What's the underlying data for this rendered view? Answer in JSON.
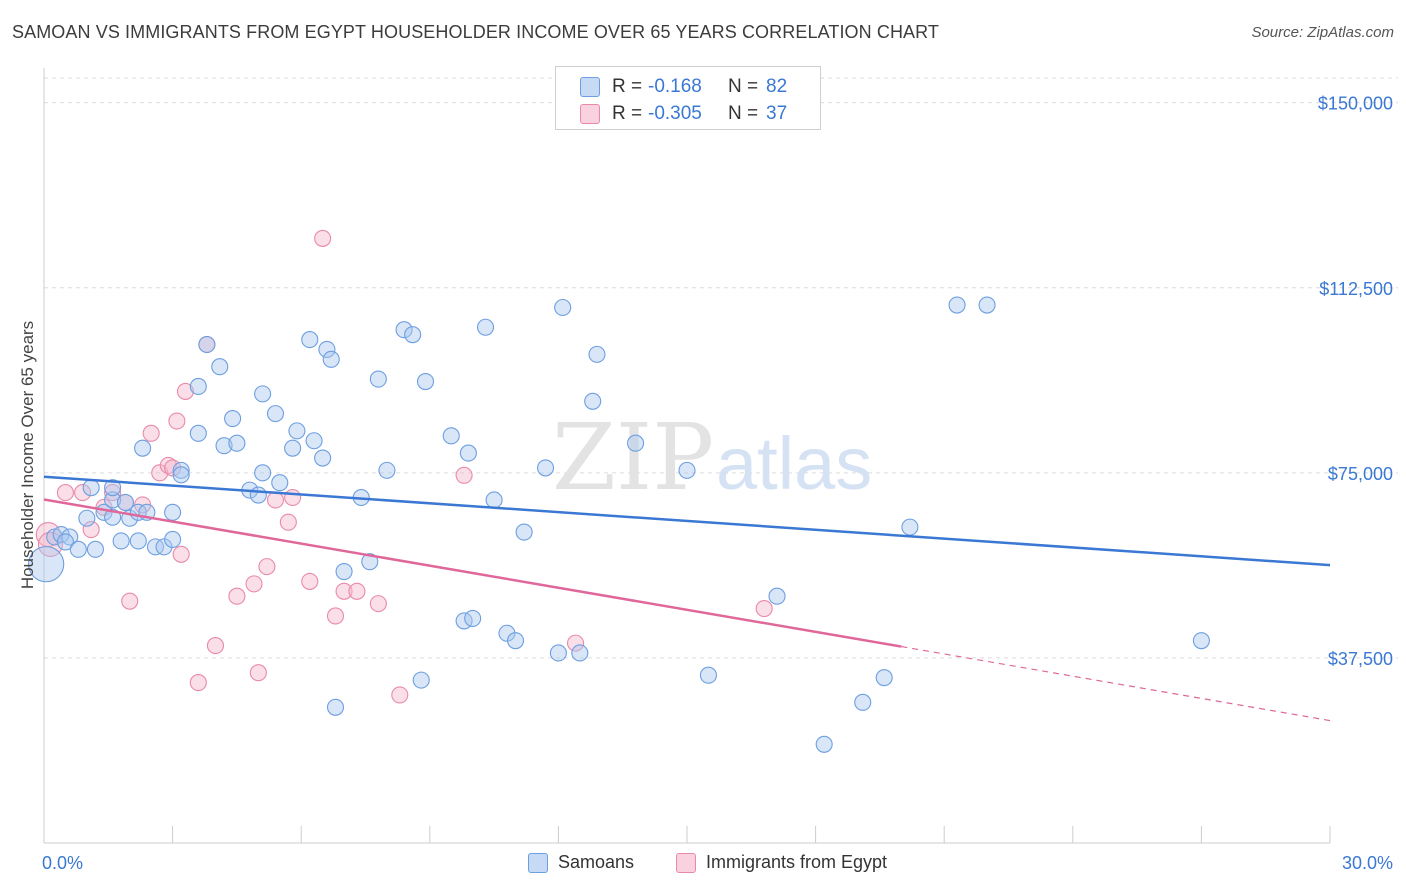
{
  "header": {
    "title": "SAMOAN VS IMMIGRANTS FROM EGYPT HOUSEHOLDER INCOME OVER 65 YEARS CORRELATION CHART",
    "source": "Source: ZipAtlas.com"
  },
  "watermark": {
    "zip": "ZIP",
    "atlas": "atlas"
  },
  "legend": {
    "rows": [
      {
        "r_label": "R =",
        "r_value": "-0.168",
        "n_label": "N =",
        "n_value": "82",
        "color": "#a9c8f0"
      },
      {
        "r_label": "R =",
        "r_value": "-0.305",
        "n_label": "N =",
        "n_value": "37",
        "color": "#f5b8cb"
      }
    ]
  },
  "bottom_legend": {
    "items": [
      {
        "label": "Samoans",
        "color": "#a9c8f0"
      },
      {
        "label": "Immigrants from Egypt",
        "color": "#f5b8cb"
      }
    ]
  },
  "chart_data": {
    "type": "scatter",
    "title": "SAMOAN VS IMMIGRANTS FROM EGYPT HOUSEHOLDER INCOME OVER 65 YEARS CORRELATION CHART",
    "xlabel": "",
    "ylabel": "Householder Income Over 65 years",
    "xlim": [
      0,
      30
    ],
    "ylim": [
      0,
      155000
    ],
    "x_tick_labels": [
      "0.0%",
      "30.0%"
    ],
    "y_ticks": [
      37500,
      75000,
      112500,
      150000
    ],
    "y_tick_labels": [
      "$37,500",
      "$75,000",
      "$112,500",
      "$150,000"
    ],
    "grid": true,
    "colors": {
      "samoans": "#3a78d4",
      "egypt": "#e0679a",
      "axis_label": "#3a78d4"
    },
    "series": [
      {
        "name": "Samoans",
        "color": "#a9c8f0",
        "stroke": "#6d9fe0",
        "trend": {
          "x": [
            0,
            30
          ],
          "y": [
            74200,
            56300
          ]
        },
        "points": [
          [
            0.05,
            56500,
            2.2
          ],
          [
            0.25,
            62000,
            1
          ],
          [
            0.4,
            62500,
            1
          ],
          [
            0.6,
            62000,
            1
          ],
          [
            0.5,
            61000,
            1
          ],
          [
            0.8,
            59500,
            1
          ],
          [
            1.2,
            59500,
            1
          ],
          [
            1.0,
            65800,
            1
          ],
          [
            1.1,
            72000,
            1
          ],
          [
            1.4,
            67000,
            1
          ],
          [
            1.6,
            66000,
            1
          ],
          [
            1.6,
            69500,
            1
          ],
          [
            1.6,
            72000,
            1
          ],
          [
            1.9,
            69000,
            1
          ],
          [
            2.0,
            65800,
            1
          ],
          [
            1.8,
            61200,
            1
          ],
          [
            2.2,
            61200,
            1
          ],
          [
            2.3,
            80000,
            1
          ],
          [
            2.2,
            67000,
            1
          ],
          [
            2.6,
            60000,
            1
          ],
          [
            2.8,
            60000,
            1
          ],
          [
            3.0,
            61500,
            1
          ],
          [
            2.4,
            67000,
            1
          ],
          [
            3.0,
            67000,
            1
          ],
          [
            3.2,
            75500,
            1
          ],
          [
            3.2,
            74600,
            1
          ],
          [
            3.6,
            83000,
            1
          ],
          [
            3.6,
            92500,
            1
          ],
          [
            3.8,
            101000,
            1
          ],
          [
            4.1,
            96500,
            1
          ],
          [
            4.2,
            80500,
            1
          ],
          [
            4.4,
            86000,
            1
          ],
          [
            4.5,
            81000,
            1
          ],
          [
            4.8,
            71500,
            1
          ],
          [
            5.0,
            70500,
            1
          ],
          [
            5.1,
            75000,
            1
          ],
          [
            5.1,
            91000,
            1
          ],
          [
            5.4,
            87000,
            1
          ],
          [
            5.5,
            73000,
            1
          ],
          [
            5.8,
            80000,
            1
          ],
          [
            5.9,
            83500,
            1
          ],
          [
            6.2,
            102000,
            1
          ],
          [
            6.3,
            81500,
            1
          ],
          [
            6.5,
            78000,
            1
          ],
          [
            6.6,
            100000,
            1
          ],
          [
            6.7,
            98000,
            1
          ],
          [
            7.0,
            55000,
            1
          ],
          [
            7.4,
            70000,
            1
          ],
          [
            7.6,
            57000,
            1
          ],
          [
            7.8,
            94000,
            1
          ],
          [
            8.0,
            75500,
            1
          ],
          [
            8.4,
            104000,
            1
          ],
          [
            8.6,
            103000,
            1
          ],
          [
            8.8,
            33000,
            1
          ],
          [
            8.9,
            93500,
            1
          ],
          [
            9.5,
            82500,
            1
          ],
          [
            9.8,
            45000,
            1
          ],
          [
            9.9,
            79000,
            1
          ],
          [
            10.0,
            45500,
            1
          ],
          [
            10.3,
            104500,
            1
          ],
          [
            10.5,
            69500,
            1
          ],
          [
            10.8,
            42500,
            1
          ],
          [
            11.0,
            41000,
            1
          ],
          [
            11.2,
            63000,
            1
          ],
          [
            11.7,
            76000,
            1
          ],
          [
            12.0,
            38500,
            1
          ],
          [
            12.1,
            108500,
            1
          ],
          [
            12.5,
            38500,
            1
          ],
          [
            12.8,
            89500,
            1
          ],
          [
            12.9,
            99000,
            1
          ],
          [
            13.8,
            81000,
            1
          ],
          [
            15.0,
            75500,
            1
          ],
          [
            15.5,
            34000,
            1
          ],
          [
            17.1,
            50000,
            1
          ],
          [
            18.2,
            20000,
            1
          ],
          [
            19.1,
            28500,
            1
          ],
          [
            19.6,
            33500,
            1
          ],
          [
            20.2,
            64000,
            1
          ],
          [
            21.3,
            109000,
            1
          ],
          [
            22.0,
            109000,
            1
          ],
          [
            27.0,
            41000,
            1
          ],
          [
            6.8,
            27500,
            1
          ]
        ]
      },
      {
        "name": "Immigrants from Egypt",
        "color": "#f5b8cb",
        "stroke": "#e98aa9",
        "trend": {
          "x": [
            0,
            20.0
          ],
          "y": [
            69600,
            39800
          ]
        },
        "trend_dashed": {
          "x": [
            20.0,
            30
          ],
          "y": [
            39800,
            24800
          ]
        },
        "points": [
          [
            0.1,
            62500,
            1.5
          ],
          [
            0.5,
            71000,
            1
          ],
          [
            0.9,
            71000,
            1
          ],
          [
            1.1,
            63500,
            1
          ],
          [
            1.4,
            68000,
            1
          ],
          [
            1.6,
            71000,
            1
          ],
          [
            1.9,
            69000,
            1
          ],
          [
            2.0,
            49000,
            1
          ],
          [
            2.3,
            68500,
            1
          ],
          [
            2.5,
            83000,
            1
          ],
          [
            2.7,
            75000,
            1
          ],
          [
            2.9,
            76500,
            1
          ],
          [
            3.0,
            76000,
            1
          ],
          [
            3.1,
            85500,
            1
          ],
          [
            3.2,
            58500,
            1
          ],
          [
            3.3,
            91500,
            1
          ],
          [
            3.6,
            32500,
            1
          ],
          [
            3.8,
            101000,
            1
          ],
          [
            4.0,
            40000,
            1
          ],
          [
            4.5,
            50000,
            1
          ],
          [
            4.9,
            52500,
            1
          ],
          [
            5.0,
            34500,
            1
          ],
          [
            5.2,
            56000,
            1
          ],
          [
            5.4,
            69500,
            1
          ],
          [
            5.7,
            65000,
            1
          ],
          [
            5.8,
            70000,
            1
          ],
          [
            6.2,
            53000,
            1
          ],
          [
            6.5,
            122500,
            1
          ],
          [
            6.8,
            46000,
            1
          ],
          [
            7.0,
            51000,
            1
          ],
          [
            7.3,
            51000,
            1
          ],
          [
            7.8,
            48500,
            1
          ],
          [
            8.3,
            30000,
            1
          ],
          [
            9.8,
            74500,
            1
          ],
          [
            12.4,
            40500,
            1
          ],
          [
            16.8,
            47500,
            1
          ],
          [
            0.15,
            60500,
            1.5
          ]
        ]
      }
    ]
  }
}
